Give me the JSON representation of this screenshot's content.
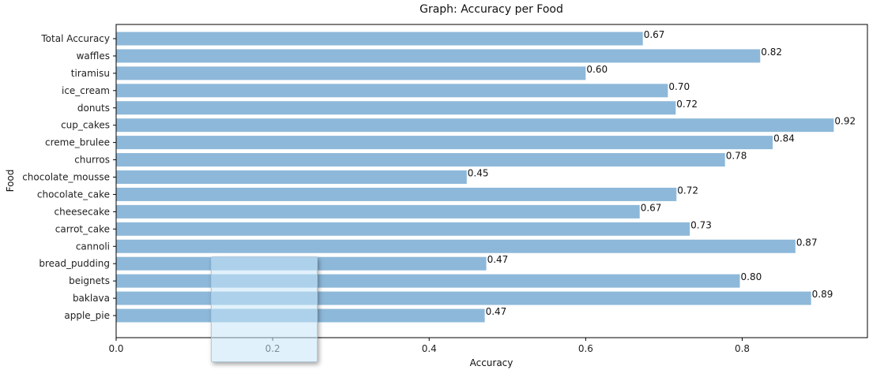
{
  "chart_data": {
    "type": "bar",
    "orientation": "horizontal",
    "title": "Graph:  Accuracy per Food",
    "xlabel": "Accuracy",
    "ylabel": "Food",
    "xlim": [
      0,
      0.96
    ],
    "xticks": [
      "0.0",
      "0.2",
      "0.4",
      "0.6",
      "0.8"
    ],
    "categories": [
      "Total Accuracy",
      "waffles",
      "tiramisu",
      "ice_cream",
      "donuts",
      "cup_cakes",
      "creme_brulee",
      "churros",
      "chocolate_mousse",
      "chocolate_cake",
      "cheesecake",
      "carrot_cake",
      "cannoli",
      "bread_pudding",
      "beignets",
      "baklava",
      "apple_pie"
    ],
    "values": [
      0.673,
      0.823,
      0.6,
      0.705,
      0.715,
      0.917,
      0.839,
      0.778,
      0.448,
      0.716,
      0.669,
      0.733,
      0.868,
      0.473,
      0.797,
      0.888,
      0.471
    ],
    "value_labels": [
      "0.67",
      "0.82",
      "0.60",
      "0.70",
      "0.72",
      "0.92",
      "0.84",
      "0.78",
      "0.45",
      "0.72",
      "0.67",
      "0.73",
      "0.87",
      "0.47",
      "0.80",
      "0.89",
      "0.47"
    ],
    "bar_color": "#8db8d9",
    "grid": false
  }
}
